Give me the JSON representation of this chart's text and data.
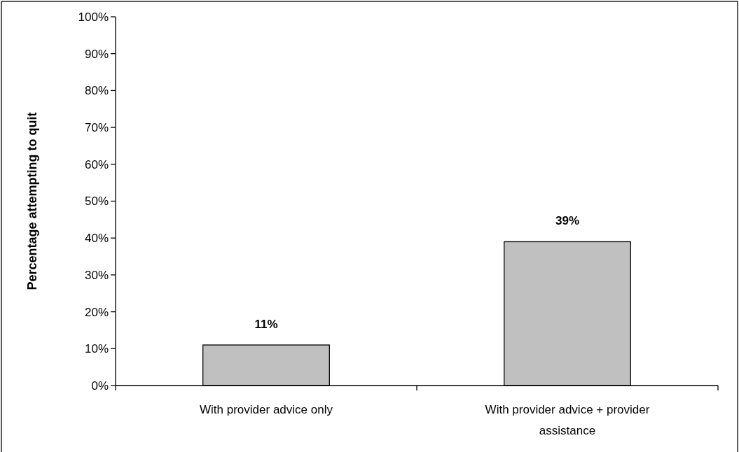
{
  "chart_data": {
    "type": "bar",
    "ylabel": "Percentage attempting to quit",
    "categories": [
      "With provider advice only",
      "With provider advice + provider assistance"
    ],
    "values": [
      11,
      39
    ],
    "color": "#c0c0c0",
    "value_labels": [
      "11%",
      "39%"
    ],
    "ylim": [
      0,
      100
    ],
    "yticks": [
      {
        "value": 0,
        "label": "0%"
      },
      {
        "value": 10,
        "label": "10%"
      },
      {
        "value": 20,
        "label": "20%"
      },
      {
        "value": 30,
        "label": "30%"
      },
      {
        "value": 40,
        "label": "40%"
      },
      {
        "value": 50,
        "label": "50%"
      },
      {
        "value": 60,
        "label": "60%"
      },
      {
        "value": 70,
        "label": "70%"
      },
      {
        "value": 80,
        "label": "80%"
      },
      {
        "value": 90,
        "label": "90%"
      },
      {
        "value": 100,
        "label": "100%"
      }
    ]
  }
}
